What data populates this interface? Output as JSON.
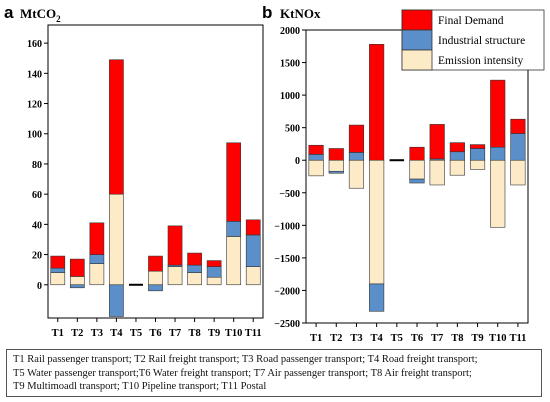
{
  "colors": {
    "final_demand": "#ff0000",
    "industrial_structure": "#5b8fc9",
    "emission_intensity": "#fdebc8",
    "stroke": "#333333"
  },
  "chart_data": [
    {
      "type": "bar",
      "panel": "a",
      "title": "MtCO2",
      "categories": [
        "T1",
        "T2",
        "T3",
        "T4",
        "T5",
        "T6",
        "T7",
        "T8",
        "T9",
        "T10",
        "T11"
      ],
      "yticks": [
        "0",
        "20",
        "40",
        "60",
        "80",
        "100",
        "120",
        "140",
        "160"
      ],
      "ylim": [
        -22,
        172
      ],
      "series": [
        {
          "name": "Emission intensity",
          "values": [
            8,
            5.5,
            14,
            60,
            0,
            9,
            12,
            8,
            5,
            32,
            12
          ]
        },
        {
          "name": "Industrial structure",
          "values": [
            3,
            -2,
            6,
            -21,
            0,
            -4,
            1,
            5,
            7,
            10,
            21
          ]
        },
        {
          "name": "Final Demand",
          "values": [
            8,
            11.5,
            21,
            89,
            0,
            10,
            26,
            8,
            4,
            52,
            10
          ]
        }
      ]
    },
    {
      "type": "bar",
      "panel": "b",
      "title": "KtNOx",
      "categories": [
        "T1",
        "T2",
        "T3",
        "T4",
        "T5",
        "T6",
        "T7",
        "T8",
        "T9",
        "T10",
        "T11"
      ],
      "yticks": [
        "2000",
        "1500",
        "1000",
        "500",
        "0",
        "−500",
        "−1000",
        "−1500",
        "−2000",
        "−2500"
      ],
      "ylim": [
        -2500,
        2000
      ],
      "legend": "top-right",
      "series": [
        {
          "name": "Emission intensity",
          "values": [
            -240,
            -170,
            -430,
            -1900,
            0,
            -290,
            -380,
            -230,
            -140,
            -1030,
            -380
          ]
        },
        {
          "name": "Industrial structure",
          "values": [
            90,
            -30,
            120,
            -420,
            0,
            -60,
            20,
            130,
            180,
            200,
            410
          ]
        },
        {
          "name": "Final Demand",
          "values": [
            140,
            180,
            420,
            1780,
            0,
            200,
            530,
            140,
            60,
            1030,
            220
          ]
        }
      ]
    }
  ],
  "legend_labels": [
    "Final Demand",
    "Industrial structure",
    "Emission intensity"
  ],
  "footnote": [
    "T1 Rail passenger transport; T2 Rail freight transport; T3 Road passenger transport; T4 Road freight transport;",
    "T5 Water passenger transport;T6 Water freight transport; T7 Air passenger transport; T8 Air freight transport;",
    "T9 Multimoadl transport; T10 Pipeline transport; T11 Postal"
  ]
}
